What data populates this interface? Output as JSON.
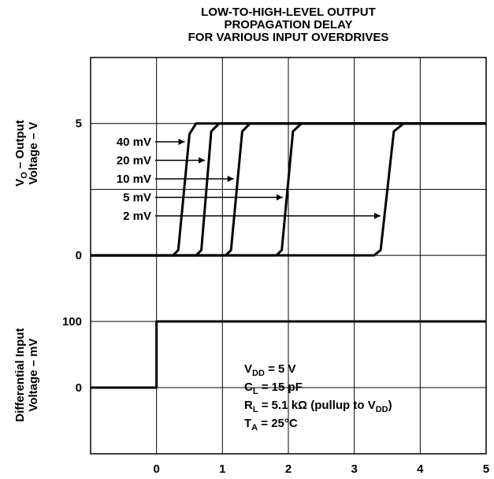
{
  "chart_data": [
    {
      "type": "line",
      "title": [
        "LOW-TO-HIGH-LEVEL OUTPUT",
        "PROPAGATION DELAY",
        "FOR VARIOUS INPUT OVERDRIVES"
      ],
      "ylabel": [
        [
          {
            "t": "V"
          },
          {
            "sub": "O"
          },
          {
            "t": " – Output"
          }
        ],
        [
          {
            "t": "Voltage – V"
          }
        ]
      ],
      "xlim": [
        -1,
        5
      ],
      "xticks": [
        0,
        1,
        2,
        3,
        4,
        5
      ],
      "show_xtick_labels": false,
      "ylim": [
        -1.25,
        7.5
      ],
      "yticks": [
        0,
        5
      ],
      "minor_yticks": [
        2.5
      ],
      "grid": true,
      "color": "#000000",
      "series": [
        {
          "name": "40 mV",
          "x": [
            -1,
            0.25,
            0.33,
            0.5,
            0.6,
            5
          ],
          "values": [
            0,
            0,
            0.2,
            4.6,
            5,
            5
          ]
        },
        {
          "name": "20 mV",
          "x": [
            -1,
            0.6,
            0.68,
            0.83,
            0.95,
            5
          ],
          "values": [
            0,
            0,
            0.2,
            4.7,
            5,
            5
          ]
        },
        {
          "name": "10 mV",
          "x": [
            -1,
            1.05,
            1.13,
            1.3,
            1.42,
            5
          ],
          "values": [
            0,
            0,
            0.2,
            4.7,
            5,
            5
          ]
        },
        {
          "name": "5 mV",
          "x": [
            -1,
            1.82,
            1.9,
            2.07,
            2.2,
            5
          ],
          "values": [
            0,
            0,
            0.2,
            4.7,
            5,
            5
          ]
        },
        {
          "name": "2 mV",
          "x": [
            -1,
            3.3,
            3.4,
            3.6,
            3.75,
            5
          ],
          "values": [
            0,
            0,
            0.2,
            4.7,
            5,
            5
          ]
        }
      ]
    },
    {
      "type": "line",
      "ylabel": [
        [
          {
            "t": "Differential Input"
          }
        ],
        [
          {
            "t": "Voltage – mV"
          }
        ]
      ],
      "xlim": [
        -1,
        5
      ],
      "xticks": [
        0,
        1,
        2,
        3,
        4,
        5
      ],
      "show_xtick_labels": true,
      "ylim": [
        -100,
        150
      ],
      "yticks": [
        0,
        100
      ],
      "grid": true,
      "color": "#000000",
      "series": [
        {
          "x": [
            -1,
            0,
            0,
            5
          ],
          "values": [
            0,
            0,
            100,
            100
          ]
        }
      ],
      "annotation": [
        [
          {
            "t": "V"
          },
          {
            "sub": "DD"
          },
          {
            "t": " = 5 V"
          }
        ],
        [
          {
            "t": "C"
          },
          {
            "sub": "L"
          },
          {
            "t": " = 15 pF"
          }
        ],
        [
          {
            "t": "R"
          },
          {
            "sub": "L"
          },
          {
            "t": " = 5.1 kΩ (pullup to V"
          },
          {
            "sub": "DD"
          },
          {
            "t": ")"
          }
        ],
        [
          {
            "t": "T"
          },
          {
            "sub": "A"
          },
          {
            "t": " = 25°C"
          }
        ]
      ]
    }
  ]
}
